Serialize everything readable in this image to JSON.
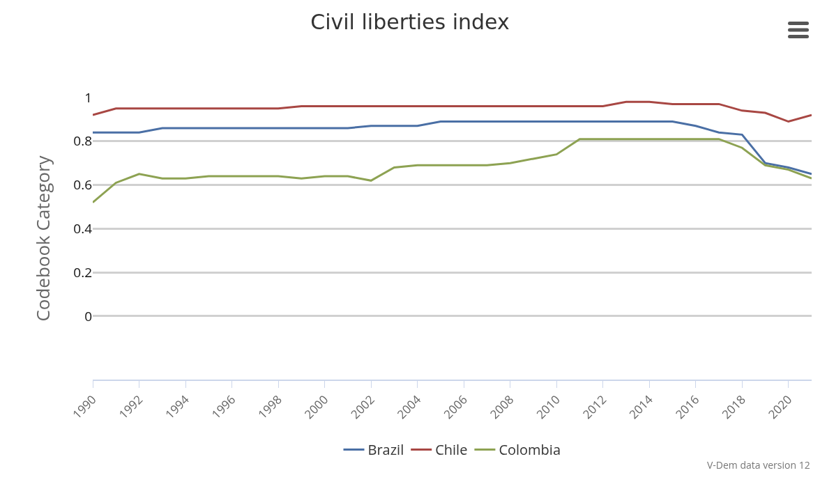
{
  "chart_data": {
    "type": "line",
    "title": "Civil liberties index",
    "ylabel": "Codebook Category",
    "x": [
      1990,
      1991,
      1992,
      1993,
      1994,
      1995,
      1996,
      1997,
      1998,
      1999,
      2000,
      2001,
      2002,
      2003,
      2004,
      2005,
      2006,
      2007,
      2008,
      2009,
      2010,
      2011,
      2012,
      2013,
      2014,
      2015,
      2016,
      2017,
      2018,
      2019,
      2020,
      2021
    ],
    "series": [
      {
        "name": "Brazil",
        "color": "#4a6fa5",
        "values": [
          0.84,
          0.84,
          0.84,
          0.86,
          0.86,
          0.86,
          0.86,
          0.86,
          0.86,
          0.86,
          0.86,
          0.86,
          0.87,
          0.87,
          0.87,
          0.89,
          0.89,
          0.89,
          0.89,
          0.89,
          0.89,
          0.89,
          0.89,
          0.89,
          0.89,
          0.89,
          0.87,
          0.84,
          0.83,
          0.7,
          0.68,
          0.65
        ]
      },
      {
        "name": "Chile",
        "color": "#a84743",
        "values": [
          0.92,
          0.95,
          0.95,
          0.95,
          0.95,
          0.95,
          0.95,
          0.95,
          0.95,
          0.96,
          0.96,
          0.96,
          0.96,
          0.96,
          0.96,
          0.96,
          0.96,
          0.96,
          0.96,
          0.96,
          0.96,
          0.96,
          0.96,
          0.98,
          0.98,
          0.97,
          0.97,
          0.97,
          0.94,
          0.93,
          0.89,
          0.92
        ]
      },
      {
        "name": "Colombia",
        "color": "#8da252",
        "values": [
          0.52,
          0.61,
          0.65,
          0.63,
          0.63,
          0.64,
          0.64,
          0.64,
          0.64,
          0.63,
          0.64,
          0.64,
          0.62,
          0.68,
          0.69,
          0.69,
          0.69,
          0.69,
          0.7,
          0.72,
          0.74,
          0.81,
          0.81,
          0.81,
          0.81,
          0.81,
          0.81,
          0.81,
          0.77,
          0.69,
          0.67,
          0.63
        ]
      }
    ],
    "xlim": [
      1990,
      2021
    ],
    "xticks": [
      1990,
      1992,
      1994,
      1996,
      1998,
      2000,
      2002,
      2004,
      2006,
      2008,
      2010,
      2012,
      2014,
      2016,
      2018,
      2020
    ],
    "ylim": [
      -0.29,
      1
    ],
    "yticks": [
      0,
      0.2,
      0.4,
      0.6,
      0.8,
      1
    ],
    "grid": "y",
    "legend": "bottom",
    "marker": "none",
    "line_style": "solid",
    "annotations": [
      "V-Dem data version 12"
    ]
  }
}
